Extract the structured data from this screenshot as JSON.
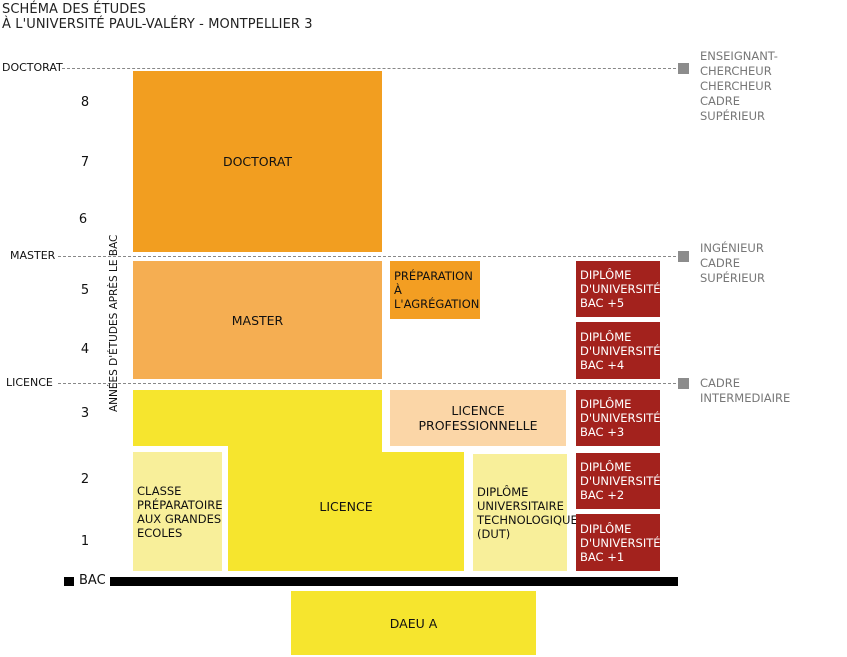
{
  "title": {
    "line1": "SCHÉMA DES ÉTUDES",
    "line2": "À L'UNIVERSITÉ PAUL-VALÉRY - MONTPELLIER 3"
  },
  "levels": {
    "doctorat": "DOCTORAT",
    "master": "MASTER",
    "licence": "LICENCE"
  },
  "axis_title": "ANNÉES D'ÉTUDES APRÈS LE BAC",
  "years": [
    "8",
    "7",
    "6",
    "5",
    "4",
    "3",
    "2",
    "1"
  ],
  "careers": {
    "doctorat": [
      "ENSEIGNANT-CHERCHEUR",
      "CHERCHEUR",
      "CADRE",
      "SUPÉRIEUR"
    ],
    "master": [
      "INGÉNIEUR",
      "CADRE",
      "SUPÉRIEUR"
    ],
    "licence": [
      "CADRE",
      "INTERMEDIAIRE"
    ]
  },
  "blocks": {
    "doctorat": "DOCTORAT",
    "master": "MASTER",
    "agregation": [
      "PRÉPARATION",
      "À L'AGRÉGATION"
    ],
    "licence_pro": [
      "LICENCE",
      "PROFESSIONNELLE"
    ],
    "licence": "LICENCE",
    "classe_prepa": [
      "CLASSE",
      "PRÉPARATOIRE",
      "AUX GRANDES",
      "ECOLES"
    ],
    "dut": [
      "DIPLÔME",
      "UNIVERSITAIRE",
      "TECHNOLOGIQUE",
      "(DUT)"
    ],
    "du": [
      [
        "DIPLÔME",
        "D'UNIVERSITÉ",
        "BAC +5"
      ],
      [
        "DIPLÔME",
        "D'UNIVERSITÉ",
        "BAC +4"
      ],
      [
        "DIPLÔME",
        "D'UNIVERSITÉ",
        "BAC +3"
      ],
      [
        "DIPLÔME",
        "D'UNIVERSITÉ",
        "BAC +2"
      ],
      [
        "DIPLÔME",
        "D'UNIVERSITÉ",
        "BAC +1"
      ]
    ],
    "daeu": "DAEU A"
  },
  "bac_label": "BAC",
  "colors": {
    "doctorat": "#f29e20",
    "master": "#f5ae52",
    "licence": "#f6e52e",
    "pale_yellow": "#f8ef9a",
    "peach": "#fbd6a7",
    "diplome_universite": "#a3221d",
    "marker_grey": "#8c8c8c"
  }
}
